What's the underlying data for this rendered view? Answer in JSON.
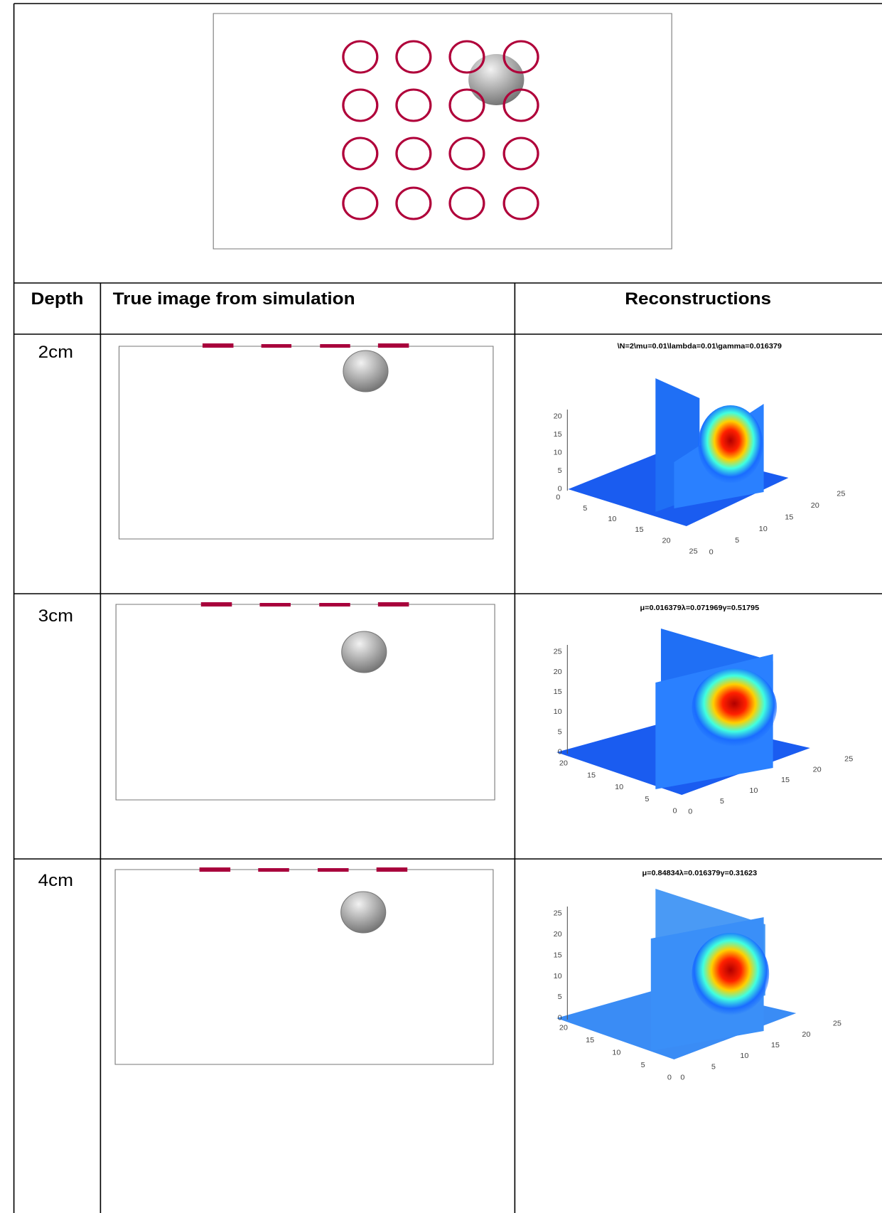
{
  "table": {
    "header": [
      "Depth",
      "True image from simulation",
      "Reconstructions"
    ],
    "rows": [
      {
        "depth": "2cm",
        "plot": {
          "title": "\\N=2\\mu=0.01\\lambda=0.01\\gamma=0.016379",
          "z_ticks": [
            0,
            5,
            10,
            15,
            20
          ],
          "left_ticks": [
            0,
            5,
            10,
            15,
            20,
            25
          ],
          "right_ticks": [
            0,
            5,
            10,
            15,
            20,
            25
          ]
        }
      },
      {
        "depth": "3cm",
        "plot": {
          "title": "μ=0.016379λ=0.071969γ=0.51795",
          "z_ticks": [
            0,
            5,
            10,
            15,
            20,
            25
          ],
          "left_ticks": [
            20,
            15,
            10,
            5,
            0
          ],
          "right_ticks": [
            0,
            5,
            10,
            15,
            20,
            25
          ]
        }
      },
      {
        "depth": "4cm",
        "plot": {
          "title": "μ=0.84834λ=0.016379γ=0.31623",
          "z_ticks": [
            0,
            5,
            10,
            15,
            20,
            25
          ],
          "left_ticks": [
            20,
            15,
            10,
            5,
            0
          ],
          "right_ticks": [
            0,
            5,
            10,
            15,
            20,
            25
          ]
        }
      }
    ]
  }
}
